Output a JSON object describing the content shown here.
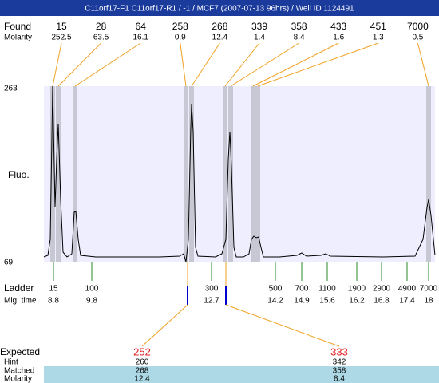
{
  "title": "C11orf17-F1  C11orf17-R1 / -1 / MCF7 (2007-07-13 96hrs) / Well ID 1124491",
  "found": {
    "label": "Found",
    "values": [
      15,
      28,
      64,
      258,
      268,
      339,
      358,
      433,
      451,
      7000
    ]
  },
  "molarity": {
    "label": "Molarity",
    "values": [
      252.5,
      63.5,
      16.1,
      0.9,
      12.4,
      1.4,
      8.4,
      1.6,
      1.3,
      0.5
    ]
  },
  "fluo": {
    "label": "Fluo.",
    "max": 263,
    "min": 69
  },
  "ladder": {
    "label": "Ladder",
    "values": [
      15,
      100,
      300,
      500,
      700,
      1100,
      1900,
      2900,
      4900,
      7000
    ]
  },
  "mig_time": {
    "label": "Mig. time",
    "values": [
      8.8,
      9.8,
      12.7,
      14.2,
      14.9,
      15.6,
      16.2,
      16.8,
      17.4,
      18
    ]
  },
  "expected": {
    "label": "Expected",
    "values": [
      252,
      333
    ]
  },
  "hint": {
    "label": "Hint",
    "values": [
      260,
      342
    ]
  },
  "matched": {
    "label": "Matched",
    "values": [
      268,
      358
    ]
  },
  "matched_molarity": {
    "label": "Molarity",
    "values": [
      12.4,
      8.4
    ]
  }
}
